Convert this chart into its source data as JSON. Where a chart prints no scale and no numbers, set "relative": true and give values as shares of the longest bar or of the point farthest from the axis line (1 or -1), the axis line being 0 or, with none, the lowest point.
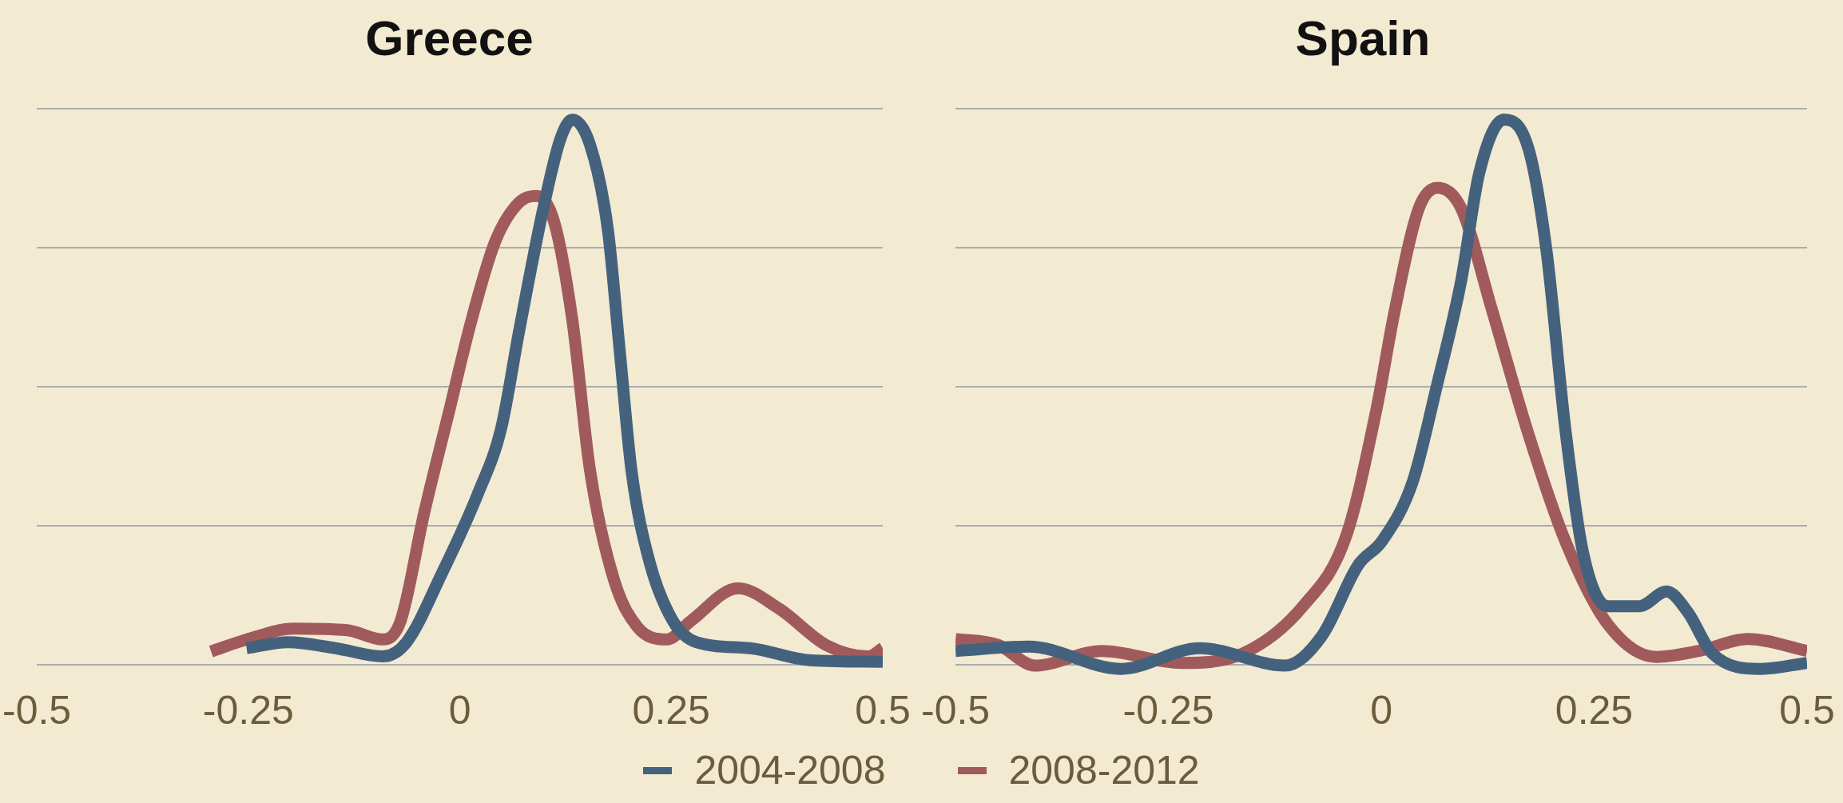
{
  "chart_data": [
    {
      "type": "line",
      "title": "Greece",
      "relative": true,
      "xlim": [
        -0.5,
        0.5
      ],
      "xticks": [
        -0.5,
        -0.25,
        0,
        0.25,
        0.5
      ],
      "grid": "y",
      "legend": "bottom",
      "marker": "none",
      "series": [
        {
          "name": "2004-2008",
          "color": "#44627e",
          "x": [
            -0.252,
            -0.203,
            -0.147,
            -0.091,
            -0.063,
            -0.021,
            0.021,
            0.049,
            0.07,
            0.098,
            0.119,
            0.133,
            0.154,
            0.175,
            0.189,
            0.203,
            0.224,
            0.252,
            0.28,
            0.343,
            0.413,
            0.5
          ],
          "values": [
            0.03,
            0.041,
            0.03,
            0.015,
            0.041,
            0.168,
            0.312,
            0.434,
            0.611,
            0.832,
            0.965,
            1.0,
            0.954,
            0.799,
            0.577,
            0.356,
            0.19,
            0.08,
            0.041,
            0.03,
            0.008,
            0.005
          ]
        },
        {
          "name": "2008-2012",
          "color": "#a15a5c",
          "x": [
            -0.294,
            -0.252,
            -0.196,
            -0.133,
            -0.091,
            -0.07,
            -0.042,
            -0.014,
            0.014,
            0.042,
            0.07,
            0.091,
            0.112,
            0.133,
            0.154,
            0.182,
            0.21,
            0.245,
            0.273,
            0.329,
            0.378,
            0.434,
            0.483,
            0.5
          ],
          "values": [
            0.024,
            0.046,
            0.066,
            0.063,
            0.046,
            0.08,
            0.279,
            0.456,
            0.633,
            0.777,
            0.848,
            0.86,
            0.81,
            0.633,
            0.356,
            0.157,
            0.069,
            0.046,
            0.08,
            0.14,
            0.102,
            0.035,
            0.015,
            0.03
          ]
        }
      ]
    },
    {
      "type": "line",
      "title": "Spain",
      "relative": true,
      "xlim": [
        -0.5,
        0.5
      ],
      "xticks": [
        -0.5,
        -0.25,
        0,
        0.25,
        0.5
      ],
      "grid": "y",
      "marker": "none",
      "series": [
        {
          "color": "#44627e",
          "x": [
            -0.5,
            -0.414,
            -0.306,
            -0.213,
            -0.113,
            -0.07,
            -0.027,
            0.001,
            0.037,
            0.065,
            0.094,
            0.115,
            0.144,
            0.173,
            0.194,
            0.216,
            0.237,
            0.266,
            0.303,
            0.335,
            0.36,
            0.389,
            0.446,
            0.5
          ],
          "values": [
            0.025,
            0.033,
            -0.008,
            0.03,
            -0.002,
            0.052,
            0.183,
            0.227,
            0.336,
            0.51,
            0.706,
            0.902,
            1.0,
            0.946,
            0.76,
            0.434,
            0.205,
            0.107,
            0.107,
            0.134,
            0.096,
            0.02,
            -0.008,
            0.003
          ]
        },
        {
          "color": "#a15a5c",
          "x": [
            -0.5,
            -0.45,
            -0.407,
            -0.328,
            -0.235,
            -0.163,
            -0.092,
            -0.041,
            -0.006,
            0.016,
            0.044,
            0.066,
            0.094,
            0.13,
            0.173,
            0.216,
            0.266,
            0.323,
            0.373,
            0.431,
            0.5
          ],
          "values": [
            0.047,
            0.036,
            -0.002,
            0.025,
            0.003,
            0.02,
            0.107,
            0.237,
            0.466,
            0.651,
            0.837,
            0.875,
            0.837,
            0.651,
            0.422,
            0.227,
            0.074,
            0.014,
            0.025,
            0.047,
            0.025
          ]
        }
      ]
    }
  ]
}
